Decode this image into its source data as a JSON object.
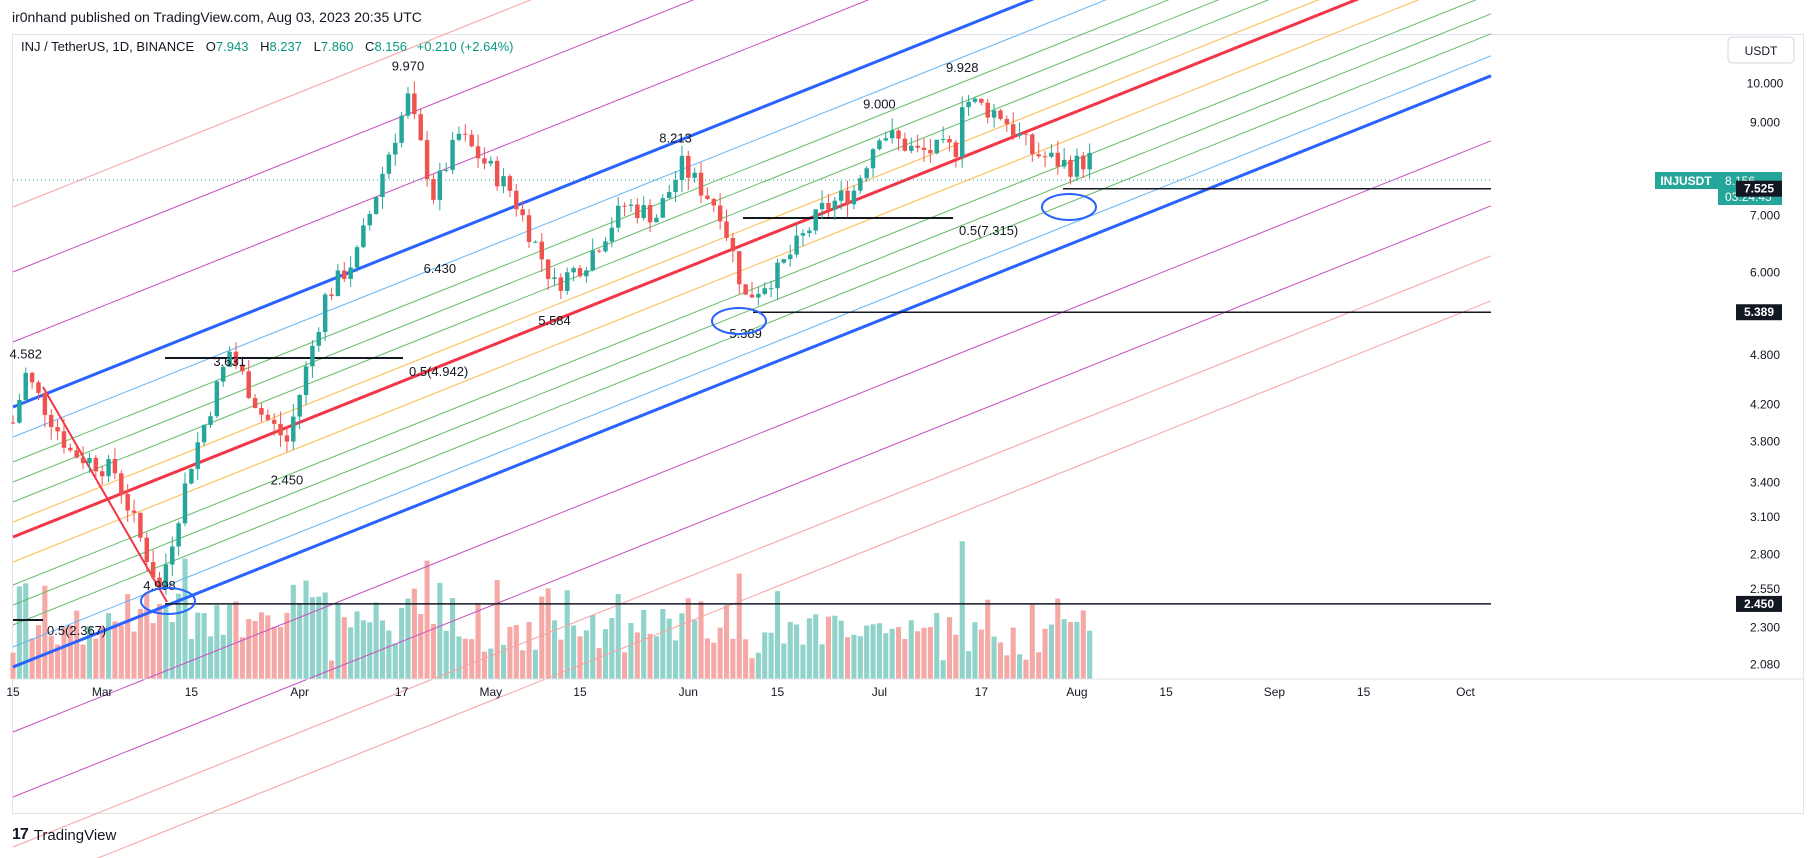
{
  "published_by": "ir0nhand published on TradingView.com, Aug 03, 2023 20:35 UTC",
  "footer": {
    "brand": "TradingView"
  },
  "legend": {
    "symbol": "INJ / TetherUS, 1D, BINANCE",
    "o_label": "O",
    "o_value": "7.943",
    "h_label": "H",
    "h_value": "8.237",
    "l_label": "L",
    "l_value": "7.860",
    "c_label": "C",
    "c_value": "8.156",
    "change": "+0.210 (+2.64%)"
  },
  "currency_button": "USDT",
  "price_axis_ticks": [
    "10.000",
    "9.000",
    "7.000",
    "6.000",
    "4.800",
    "4.200",
    "3.800",
    "3.400",
    "3.100",
    "2.800",
    "2.550",
    "2.300",
    "2.080"
  ],
  "price_tags": {
    "last": {
      "symbol": "INJUSDT",
      "price": "8.156",
      "countdown": "03:24:45"
    },
    "levels": [
      "7.525",
      "5.389",
      "2.450"
    ]
  },
  "annotations": {
    "pivot_labels": [
      "4.582",
      "4.998",
      "3.631",
      "2.450",
      "9.970",
      "6.430",
      "5.584",
      "8.213",
      "5.389",
      "9.000",
      "9.928"
    ],
    "fib_labels": [
      "0.5(2.367)",
      "0.5(4.942)",
      "0.5(7.315)"
    ]
  },
  "time_axis_ticks": [
    "15",
    "Mar",
    "15",
    "Apr",
    "17",
    "May",
    "15",
    "Jun",
    "15",
    "Jul",
    "17",
    "Aug",
    "15",
    "Sep",
    "15",
    "Oct"
  ],
  "chart_data": {
    "type": "candlestick",
    "title": "INJ / TetherUS, 1D, BINANCE",
    "y_scale": "log",
    "ylim": [
      2.0,
      11.4
    ],
    "x_range": [
      "2023-02-15",
      "2023-10-05"
    ],
    "last_price": 8.156,
    "horizontal_levels": [
      7.525,
      5.389,
      2.45
    ],
    "pivots": [
      {
        "date": "2023-02-17",
        "value": 4.582
      },
      {
        "date": "2023-03-10",
        "value": 2.45
      },
      {
        "date": "2023-03-21",
        "value": 4.998
      },
      {
        "date": "2023-03-30",
        "value": 3.631
      },
      {
        "date": "2023-04-18",
        "value": 9.97
      },
      {
        "date": "2023-04-23",
        "value": 6.43
      },
      {
        "date": "2023-05-11",
        "value": 5.584
      },
      {
        "date": "2023-05-30",
        "value": 8.213
      },
      {
        "date": "2023-06-10",
        "value": 5.389
      },
      {
        "date": "2023-07-01",
        "value": 9.0
      },
      {
        "date": "2023-07-14",
        "value": 9.928
      }
    ],
    "colors": {
      "up": "#26a69a",
      "down": "#ef5350",
      "median": "#f23645",
      "channel": "#2962ff"
    },
    "candle_anchors": [
      [
        "2023-02-15",
        4.0
      ],
      [
        "2023-02-17",
        4.55
      ],
      [
        "2023-02-24",
        3.7
      ],
      [
        "2023-03-03",
        3.5
      ],
      [
        "2023-03-10",
        2.55
      ],
      [
        "2023-03-15",
        3.6
      ],
      [
        "2023-03-21",
        4.85
      ],
      [
        "2023-03-26",
        4.1
      ],
      [
        "2023-03-30",
        3.8
      ],
      [
        "2023-04-05",
        5.6
      ],
      [
        "2023-04-10",
        6.3
      ],
      [
        "2023-04-15",
        8.3
      ],
      [
        "2023-04-18",
        9.6
      ],
      [
        "2023-04-22",
        7.4
      ],
      [
        "2023-04-26",
        8.7
      ],
      [
        "2023-05-04",
        7.5
      ],
      [
        "2023-05-11",
        5.8
      ],
      [
        "2023-05-16",
        6.2
      ],
      [
        "2023-05-22",
        7.2
      ],
      [
        "2023-05-27",
        7.0
      ],
      [
        "2023-05-31",
        8.0
      ],
      [
        "2023-06-06",
        7.1
      ],
      [
        "2023-06-10",
        5.6
      ],
      [
        "2023-06-15",
        6.0
      ],
      [
        "2023-06-22",
        7.1
      ],
      [
        "2023-06-27",
        7.5
      ],
      [
        "2023-07-01",
        8.8
      ],
      [
        "2023-07-07",
        8.3
      ],
      [
        "2023-07-13",
        8.4
      ],
      [
        "2023-07-14",
        9.6
      ],
      [
        "2023-07-20",
        9.2
      ],
      [
        "2023-07-25",
        8.3
      ],
      [
        "2023-07-31",
        8.0
      ],
      [
        "2023-08-03",
        8.156
      ]
    ]
  }
}
